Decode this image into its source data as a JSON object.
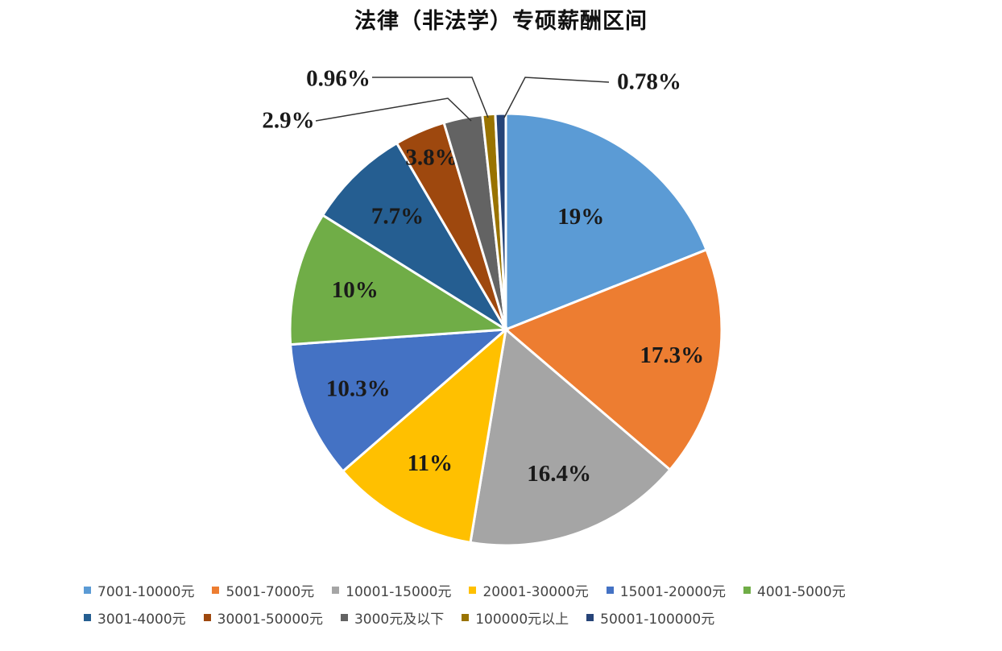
{
  "chart_data": {
    "type": "pie",
    "title": "法律（非法学）专硕薪酬区间",
    "slices": [
      {
        "name": "7001-10000元",
        "value": 19,
        "label": "19%",
        "color": "#5B9BD5"
      },
      {
        "name": "5001-7000元",
        "value": 17.3,
        "label": "17.3%",
        "color": "#ED7D31"
      },
      {
        "name": "10001-15000元",
        "value": 16.4,
        "label": "16.4%",
        "color": "#A5A5A5"
      },
      {
        "name": "20001-30000元",
        "value": 11,
        "label": "11%",
        "color": "#FFC000"
      },
      {
        "name": "15001-20000元",
        "value": 10.3,
        "label": "10.3%",
        "color": "#4472C4"
      },
      {
        "name": "4001-5000元",
        "value": 10,
        "label": "10%",
        "color": "#70AD47"
      },
      {
        "name": "3001-4000元",
        "value": 7.7,
        "label": "7.7%",
        "color": "#255E91"
      },
      {
        "name": "30001-50000元",
        "value": 3.8,
        "label": "3.8%",
        "color": "#9E480E"
      },
      {
        "name": "3000元及以下",
        "value": 2.9,
        "label": "2.9%",
        "color": "#636363"
      },
      {
        "name": "100000元以上",
        "value": 0.96,
        "label": "0.96%",
        "color": "#997300"
      },
      {
        "name": "50001-100000元",
        "value": 0.78,
        "label": "0.78%",
        "color": "#264478"
      }
    ],
    "legend_position": "bottom"
  }
}
